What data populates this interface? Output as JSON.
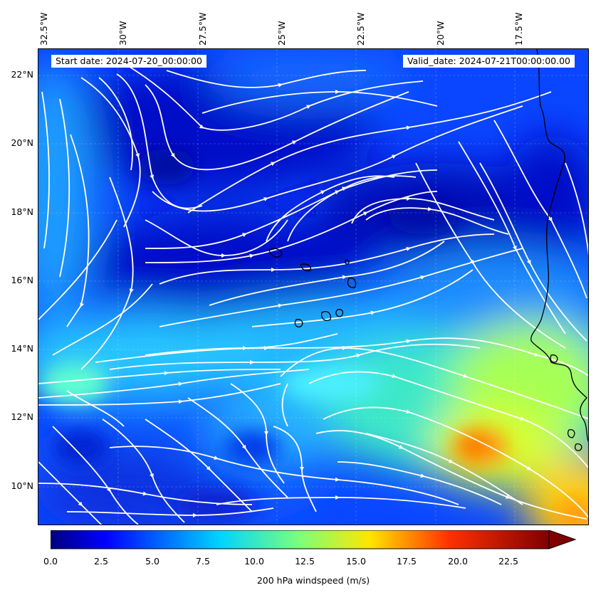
{
  "map": {
    "start_date_label": "Start date: 2024-07-20_00:00:00",
    "valid_date_label": "Valid_date: 2024-07-21T00:00:00.00",
    "lon_labels": [
      "32.5°W",
      "30°W",
      "27.5°W",
      "25°W",
      "22.5°W",
      "20°W",
      "17.5°W"
    ],
    "lat_labels": [
      "22°N",
      "20°N",
      "18°N",
      "16°N",
      "14°N",
      "12°N",
      "10°N"
    ],
    "colorbar": {
      "ticks": [
        "0.0",
        "2.5",
        "5.0",
        "7.5",
        "10.0",
        "12.5",
        "15.0",
        "17.5",
        "20.0",
        "22.5"
      ],
      "label": "200 hPa windspeed (m/s)",
      "min": 0,
      "max": 25,
      "colormap": "jet",
      "extend": "max"
    },
    "field": "200 hPa windspeed streamlines",
    "colors": {
      "streamline": "#ffffff",
      "coastline": "#000000"
    }
  }
}
